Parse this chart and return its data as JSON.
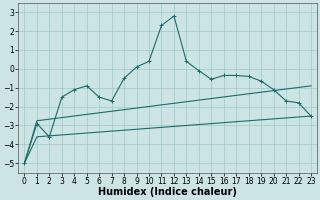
{
  "xlabel": "Humidex (Indice chaleur)",
  "ylabel": "",
  "background_color": "#cde4e4",
  "grid_color": "#a0c8c8",
  "line_color": "#1a6b6b",
  "xlim": [
    -0.5,
    23.5
  ],
  "ylim": [
    -5.5,
    3.5
  ],
  "yticks": [
    -5,
    -4,
    -3,
    -2,
    -1,
    0,
    1,
    2,
    3
  ],
  "xticks": [
    0,
    1,
    2,
    3,
    4,
    5,
    6,
    7,
    8,
    9,
    10,
    11,
    12,
    13,
    14,
    15,
    16,
    17,
    18,
    19,
    20,
    21,
    22,
    23
  ],
  "series1_x": [
    0,
    1,
    2,
    3,
    4,
    5,
    6,
    7,
    8,
    9,
    10,
    11,
    12,
    13,
    14,
    15,
    16,
    17,
    18,
    19,
    20,
    21,
    22,
    23
  ],
  "series1_y": [
    -5.0,
    -2.9,
    -3.6,
    -1.5,
    -1.1,
    -0.9,
    -1.5,
    -1.7,
    -0.5,
    0.1,
    0.4,
    2.3,
    2.8,
    0.4,
    -0.1,
    -0.55,
    -0.35,
    -0.35,
    -0.4,
    -0.65,
    -1.1,
    -1.7,
    -1.8,
    -2.5
  ],
  "series2_x": [
    0,
    1,
    23
  ],
  "series2_y": [
    -5.0,
    -2.75,
    -0.9
  ],
  "series3_x": [
    0,
    1,
    23
  ],
  "series3_y": [
    -5.0,
    -3.6,
    -2.5
  ],
  "title_fontsize": 7,
  "xlabel_fontsize": 7,
  "tick_fontsize": 5.5
}
